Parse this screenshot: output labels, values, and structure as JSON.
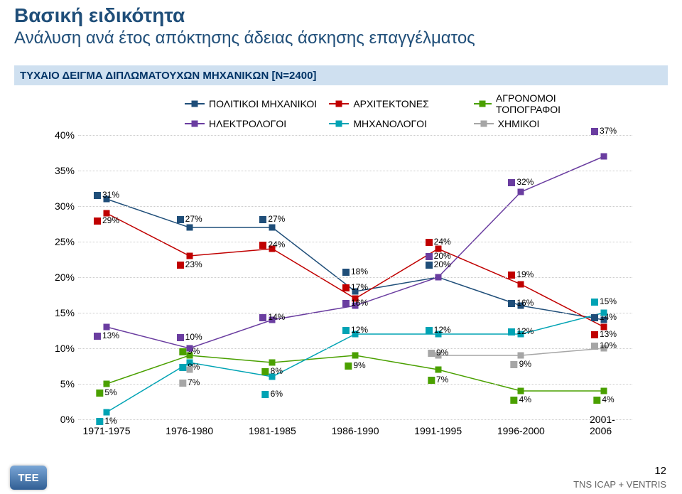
{
  "title_main": "Βασική ειδικότητα",
  "title_sub": "Ανάλυση ανά έτος απόκτησης άδειας άσκησης επαγγέλματος",
  "sample_label": "ΤΥΧΑΙΟ ΔΕΙΓΜΑ ΔΙΠΛΩΜΑΤΟΥΧΩΝ ΜΗΧΑΝΙΚΩΝ [N=2400]",
  "footer_page": "12",
  "footer_source": "TNS ICAP + VENTRIS",
  "logo_text": "TEE",
  "chart": {
    "type": "line",
    "background_color": "#ffffff",
    "grid_color": "#cccccc",
    "ylim": [
      0,
      40
    ],
    "y_ticks": [
      0,
      5,
      10,
      15,
      20,
      25,
      30,
      35,
      40
    ],
    "y_tick_labels": [
      "0%",
      "5%",
      "10%",
      "15%",
      "20%",
      "25%",
      "30%",
      "35%",
      "40%"
    ],
    "categories": [
      "1971-1975",
      "1976-1980",
      "1981-1985",
      "1986-1990",
      "1991-1995",
      "1996-2000",
      "2001-2006"
    ],
    "label_fontsize": 14,
    "data_label_fontsize": 12,
    "line_width": 1.5,
    "marker_size": 9,
    "legend": {
      "position": "top",
      "items": [
        "ΠΟΛΙΤΙΚΟΙ ΜΗΧΑΝΙΚΟΙ",
        "ΑΡΧΙΤΕΚΤΟΝΕΣ",
        "ΑΓΡΟΝΟΜΟΙ ΤΟΠΟΓΡΑΦΟΙ",
        "ΗΛΕΚΤΡΟΛΟΓΟΙ",
        "ΜΗΧΑΝΟΛΟΓΟΙ",
        "ΧΗΜΙΚΟΙ"
      ]
    },
    "series": [
      {
        "name": "ΠΟΛΙΤΙΚΟΙ ΜΗΧΑΝΙΚΟΙ",
        "color": "#1f4e79",
        "values": [
          31,
          27,
          27,
          18,
          20,
          16,
          14
        ],
        "labels": [
          "31%",
          "27%",
          "27%",
          "18%",
          "20%",
          "16%",
          "14%"
        ],
        "label_dy": [
          -6,
          -12,
          -12,
          -28,
          -18,
          -4,
          -4
        ]
      },
      {
        "name": "ΑΡΧΙΤΕΚΤΟΝΕΣ",
        "color": "#c00000",
        "values": [
          29,
          23,
          24,
          17,
          24,
          19,
          13
        ],
        "labels": [
          "29%",
          "23%",
          "24%",
          "17%",
          "24%",
          "19%",
          "13%"
        ],
        "label_dy": [
          10,
          12,
          -6,
          -16,
          -10,
          -14,
          10
        ]
      },
      {
        "name": "ΑΓΡΟΝΟΜΟΙ ΤΟΠΟΓΡΑΦΟΙ",
        "color": "#4aa000",
        "values": [
          5,
          9,
          8,
          9,
          7,
          4,
          4
        ],
        "labels": [
          "5%",
          "9%",
          "8%",
          "9%",
          "7%",
          "4%",
          "4%"
        ],
        "label_dy": [
          12,
          -6,
          12,
          14,
          14,
          12,
          12
        ]
      },
      {
        "name": "ΗΛΕΚΤΡΟΛΟΓΟΙ",
        "color": "#6a3da0",
        "values": [
          13,
          10,
          14,
          16,
          20,
          32,
          37
        ],
        "labels": [
          "13%",
          "10%",
          "14%",
          "16%",
          "20%",
          "32%",
          "37%"
        ],
        "label_dy": [
          12,
          -16,
          -4,
          -4,
          -30,
          -14,
          -36
        ]
      },
      {
        "name": "ΜΗΧΑΝΟΛΟΓΟΙ",
        "color": "#00a3b4",
        "values": [
          1,
          8,
          6,
          12,
          12,
          12,
          15
        ],
        "labels": [
          "1%",
          "8%",
          "6%",
          "12%",
          "12%",
          "12%",
          "15%"
        ],
        "label_dy": [
          12,
          6,
          24,
          -6,
          -6,
          -4,
          -16
        ]
      },
      {
        "name": "ΧΗΜΙΚΟΙ",
        "color": "#a6a6a6",
        "values": [
          null,
          7,
          null,
          null,
          9,
          9,
          10
        ],
        "labels": [
          "",
          "7%",
          "",
          "",
          "9%",
          "9%",
          "10%"
        ],
        "label_dy": [
          0,
          18,
          0,
          0,
          -4,
          12,
          -4
        ]
      }
    ]
  }
}
